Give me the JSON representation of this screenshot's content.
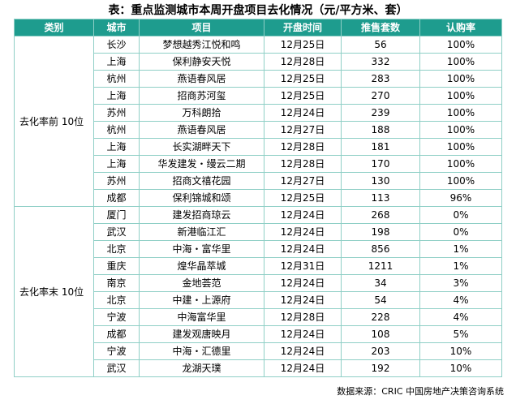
{
  "title": "表：重点监测城市本周开盘项目去化情况（元/平方米、套）",
  "headers": [
    "类别",
    "城市",
    "项目",
    "开盘时间",
    "推售套数",
    "认购率"
  ],
  "groups": [
    {
      "label": "去化率前 10位",
      "rows": [
        [
          "长沙",
          "梦想越秀江悦和鸣",
          "12月25日",
          "56",
          "100%"
        ],
        [
          "上海",
          "保利静安天悦",
          "12月28日",
          "332",
          "100%"
        ],
        [
          "杭州",
          "燕语春风居",
          "12月25日",
          "283",
          "100%"
        ],
        [
          "上海",
          "招商苏河玺",
          "12月25日",
          "270",
          "100%"
        ],
        [
          "苏州",
          "万科朗拾",
          "12月24日",
          "239",
          "100%"
        ],
        [
          "杭州",
          "燕语春风居",
          "12月27日",
          "188",
          "100%"
        ],
        [
          "上海",
          "长实湖畔天下",
          "12月28日",
          "181",
          "100%"
        ],
        [
          "上海",
          "华发建发・缦云二期",
          "12月28日",
          "170",
          "100%"
        ],
        [
          "苏州",
          "招商文禧花园",
          "12月27日",
          "130",
          "100%"
        ],
        [
          "成都",
          "保利锦城和颂",
          "12月25日",
          "113",
          "96%"
        ]
      ]
    },
    {
      "label": "去化率末 10位",
      "rows": [
        [
          "厦门",
          "建发招商琼云",
          "12月24日",
          "268",
          "0%"
        ],
        [
          "武汉",
          "新港临江汇",
          "12月24日",
          "198",
          "0%"
        ],
        [
          "北京",
          "中海・富华里",
          "12月24日",
          "856",
          "1%"
        ],
        [
          "重庆",
          "煌华晶萃城",
          "12月31日",
          "1211",
          "1%"
        ],
        [
          "南京",
          "金地荟范",
          "12月24日",
          "34",
          "3%"
        ],
        [
          "北京",
          "中建・上源府",
          "12月24日",
          "54",
          "4%"
        ],
        [
          "宁波",
          "中海富华里",
          "12月28日",
          "228",
          "4%"
        ],
        [
          "成都",
          "建发观唐映月",
          "12月24日",
          "108",
          "5%"
        ],
        [
          "宁波",
          "中海・汇德里",
          "12月24日",
          "203",
          "10%"
        ],
        [
          "武汉",
          "龙湖天璞",
          "12月24日",
          "192",
          "10%"
        ]
      ]
    }
  ],
  "source": "数据来源：CRIC 中国房地产决策咨询系统",
  "colors": {
    "header_bg": "#1e9c8e",
    "header_text": "#ffffff",
    "border": "#8fcfc6"
  }
}
